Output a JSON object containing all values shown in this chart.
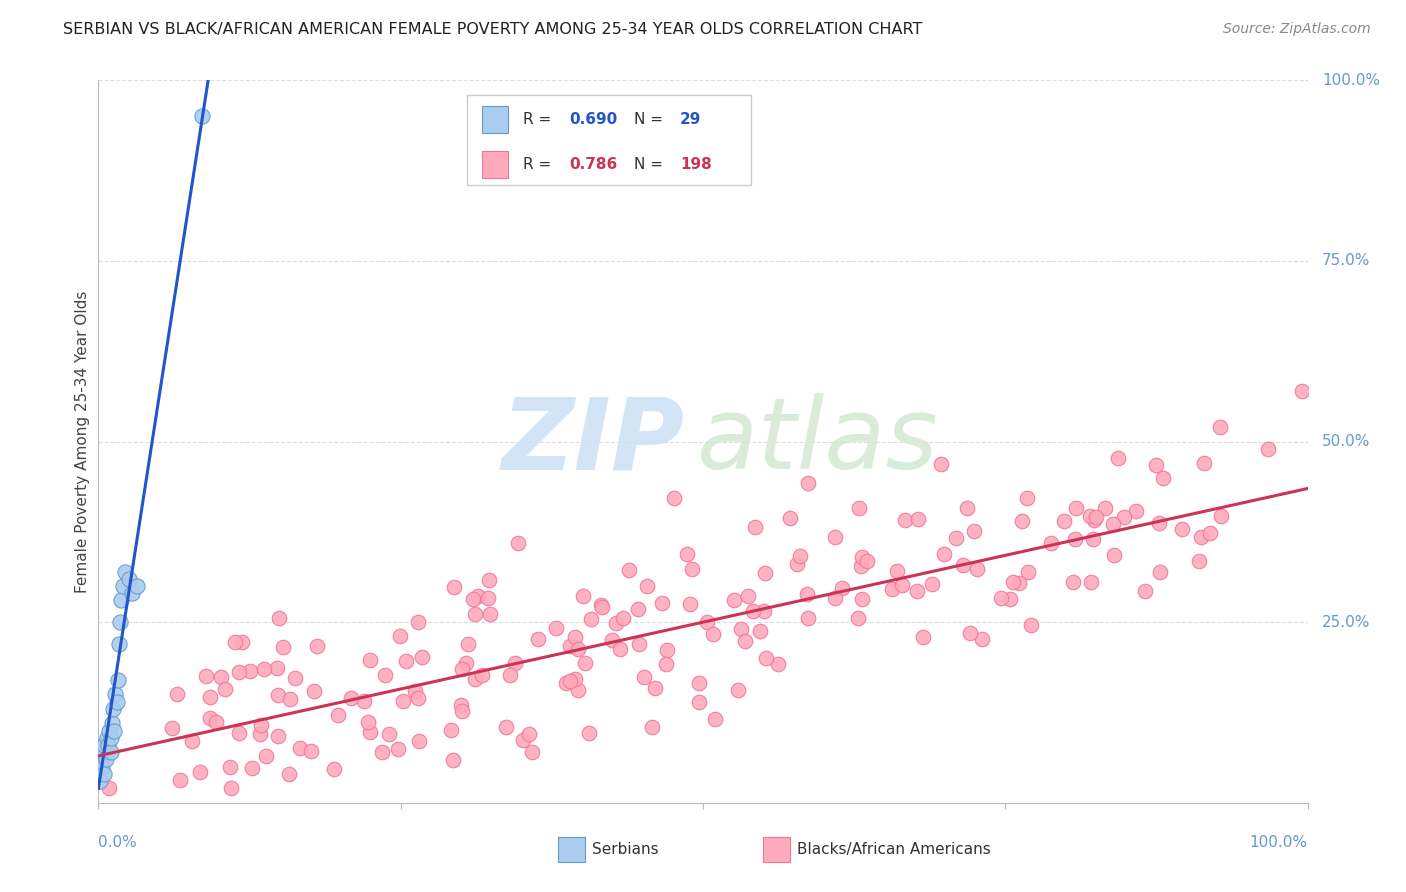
{
  "title": "SERBIAN VS BLACK/AFRICAN AMERICAN FEMALE POVERTY AMONG 25-34 YEAR OLDS CORRELATION CHART",
  "source": "Source: ZipAtlas.com",
  "ylabel": "Female Poverty Among 25-34 Year Olds",
  "legend_serbian_R": "0.690",
  "legend_serbian_N": "29",
  "legend_black_R": "0.786",
  "legend_black_N": "198",
  "serbian_color": "#aaccee",
  "serbian_edge_color": "#6699cc",
  "black_color": "#ffaabb",
  "black_edge_color": "#ee7799",
  "regression_serbian_color": "#2255cc",
  "regression_black_color": "#cc3355",
  "background_color": "#ffffff",
  "grid_color": "#dddddd",
  "title_color": "#222222",
  "axis_label_color": "#6699cc",
  "right_label_color": "#6699cc",
  "source_color": "#888888",
  "watermark_zip_color": "#cce0f5",
  "watermark_atlas_color": "#d5e8d4",
  "serbian_scatter_x": [
    0.0,
    0.0,
    0.001,
    0.002,
    0.003,
    0.004,
    0.005,
    0.005,
    0.006,
    0.007,
    0.008,
    0.009,
    0.01,
    0.01,
    0.011,
    0.012,
    0.013,
    0.014,
    0.015,
    0.016,
    0.017,
    0.018,
    0.019,
    0.02,
    0.022,
    0.025,
    0.028,
    0.032,
    0.086
  ],
  "serbian_scatter_y": [
    0.04,
    0.05,
    0.03,
    0.06,
    0.05,
    0.07,
    0.04,
    0.08,
    0.06,
    0.09,
    0.08,
    0.1,
    0.07,
    0.09,
    0.11,
    0.13,
    0.1,
    0.15,
    0.14,
    0.17,
    0.22,
    0.25,
    0.28,
    0.3,
    0.32,
    0.31,
    0.29,
    0.3,
    0.95
  ],
  "regression_serbian_slope": 10.8,
  "regression_serbian_intercept": 0.02,
  "regression_black_slope": 0.37,
  "regression_black_intercept": 0.065,
  "black_seed": 99,
  "n_black": 198,
  "xlim": [
    0.0,
    1.0
  ],
  "ylim": [
    0.0,
    1.0
  ],
  "ytick_positions": [
    0.25,
    0.5,
    0.75,
    1.0
  ],
  "ytick_labels": [
    "25.0%",
    "50.0%",
    "75.0%",
    "100.0%"
  ]
}
